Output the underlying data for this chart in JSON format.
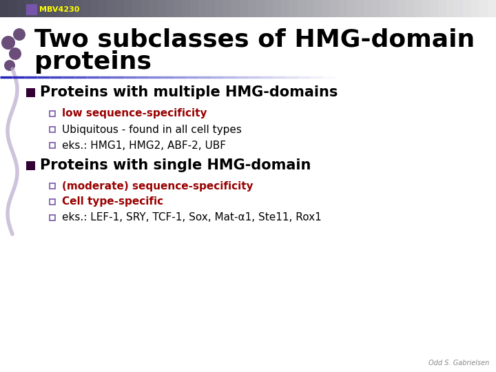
{
  "background_color": "#ffffff",
  "header_bar_color_left": "#555577",
  "header_bar_color_right": "#dddddd",
  "header_text": "MBV4230",
  "header_text_color": "#ffff00",
  "header_square_color": "#7755aa",
  "title_text_line1": "Two subclasses of HMG-domain",
  "title_text_line2": "proteins",
  "title_color": "#000000",
  "divider_color": "#2222bb",
  "section1_heading": "Proteins with multiple HMG-domains",
  "section1_bullet1": "low sequence-specificity",
  "section1_bullet1_color": "#990000",
  "section1_bullet2": "Ubiquitous - found in all cell types",
  "section1_bullet2_color": "#000000",
  "section1_bullet3": "eks.: HMG1, HMG2, ABF-2, UBF",
  "section1_bullet3_color": "#000000",
  "section2_heading": "Proteins with single HMG-domain",
  "section2_bullet1": "(moderate) sequence-specificity",
  "section2_bullet1_color": "#990000",
  "section2_bullet2": "Cell type-specific",
  "section2_bullet2_color": "#990000",
  "section2_bullet3": "eks.: LEF-1, SRY, TCF-1, Sox, Mat-α1, Ste11, Rox1",
  "section2_bullet3_color": "#000000",
  "footer_text": "Odd S. Gabrielsen",
  "footer_color": "#888888",
  "heading_color": "#000000",
  "section_bullet_color": "#330033",
  "sub_bullet_color": "#7755aa"
}
